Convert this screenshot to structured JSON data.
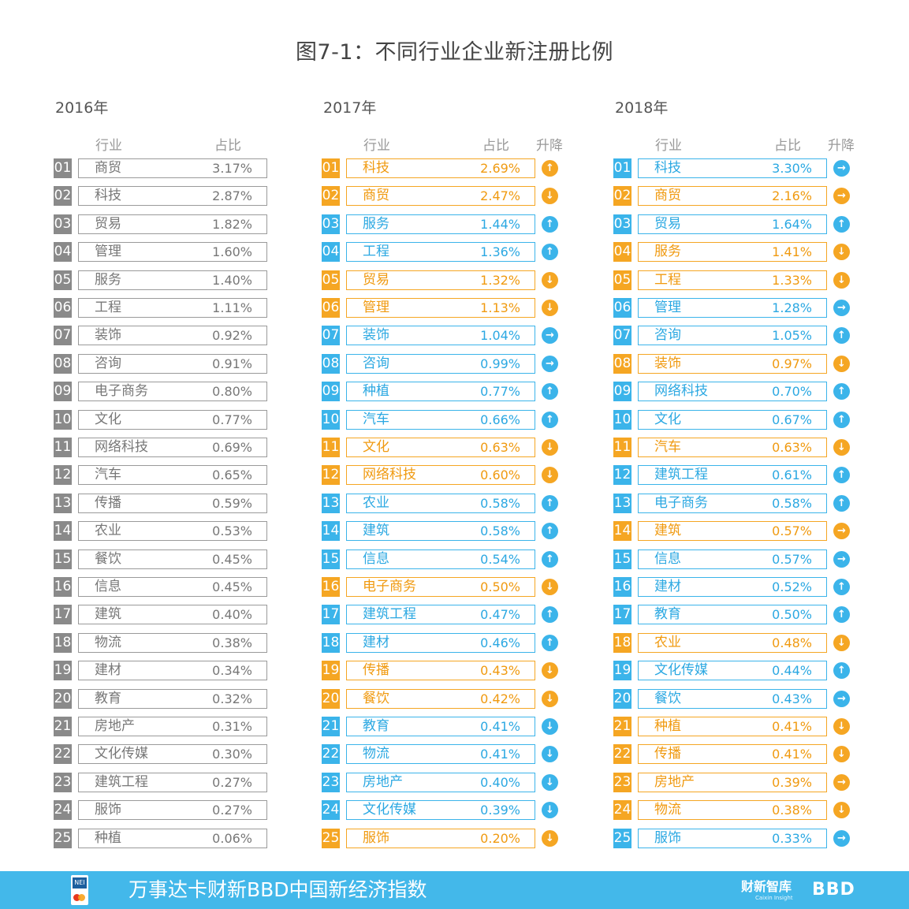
{
  "chart_data": {
    "type": "table",
    "title": "图7-1：不同行业企业新注册比例",
    "headers": {
      "industry": "行业",
      "share": "占比",
      "change": "升降"
    },
    "years": [
      {
        "year": "2016年",
        "rows": [
          {
            "rank": "01",
            "industry": "商贸",
            "share": "3.17%"
          },
          {
            "rank": "02",
            "industry": "科技",
            "share": "2.87%"
          },
          {
            "rank": "03",
            "industry": "贸易",
            "share": "1.82%"
          },
          {
            "rank": "04",
            "industry": "管理",
            "share": "1.60%"
          },
          {
            "rank": "05",
            "industry": "服务",
            "share": "1.40%"
          },
          {
            "rank": "06",
            "industry": "工程",
            "share": "1.11%"
          },
          {
            "rank": "07",
            "industry": "装饰",
            "share": "0.92%"
          },
          {
            "rank": "08",
            "industry": "咨询",
            "share": "0.91%"
          },
          {
            "rank": "09",
            "industry": "电子商务",
            "share": "0.80%"
          },
          {
            "rank": "10",
            "industry": "文化",
            "share": "0.77%"
          },
          {
            "rank": "11",
            "industry": "网络科技",
            "share": "0.69%"
          },
          {
            "rank": "12",
            "industry": "汽车",
            "share": "0.65%"
          },
          {
            "rank": "13",
            "industry": "传播",
            "share": "0.59%"
          },
          {
            "rank": "14",
            "industry": "农业",
            "share": "0.53%"
          },
          {
            "rank": "15",
            "industry": "餐饮",
            "share": "0.45%"
          },
          {
            "rank": "16",
            "industry": "信息",
            "share": "0.45%"
          },
          {
            "rank": "17",
            "industry": "建筑",
            "share": "0.40%"
          },
          {
            "rank": "18",
            "industry": "物流",
            "share": "0.38%"
          },
          {
            "rank": "19",
            "industry": "建材",
            "share": "0.34%"
          },
          {
            "rank": "20",
            "industry": "教育",
            "share": "0.32%"
          },
          {
            "rank": "21",
            "industry": "房地产",
            "share": "0.31%"
          },
          {
            "rank": "22",
            "industry": "文化传媒",
            "share": "0.30%"
          },
          {
            "rank": "23",
            "industry": "建筑工程",
            "share": "0.27%"
          },
          {
            "rank": "24",
            "industry": "服饰",
            "share": "0.27%"
          },
          {
            "rank": "25",
            "industry": "种植",
            "share": "0.06%"
          }
        ]
      },
      {
        "year": "2017年",
        "rows": [
          {
            "rank": "01",
            "industry": "科技",
            "share": "2.69%",
            "color": "orange",
            "trend": "up"
          },
          {
            "rank": "02",
            "industry": "商贸",
            "share": "2.47%",
            "color": "orange",
            "trend": "down"
          },
          {
            "rank": "03",
            "industry": "服务",
            "share": "1.44%",
            "color": "blue",
            "trend": "up"
          },
          {
            "rank": "04",
            "industry": "工程",
            "share": "1.36%",
            "color": "blue",
            "trend": "up"
          },
          {
            "rank": "05",
            "industry": "贸易",
            "share": "1.32%",
            "color": "orange",
            "trend": "down"
          },
          {
            "rank": "06",
            "industry": "管理",
            "share": "1.13%",
            "color": "orange",
            "trend": "down"
          },
          {
            "rank": "07",
            "industry": "装饰",
            "share": "1.04%",
            "color": "blue",
            "trend": "same"
          },
          {
            "rank": "08",
            "industry": "咨询",
            "share": "0.99%",
            "color": "blue",
            "trend": "same"
          },
          {
            "rank": "09",
            "industry": "种植",
            "share": "0.77%",
            "color": "blue",
            "trend": "up"
          },
          {
            "rank": "10",
            "industry": "汽车",
            "share": "0.66%",
            "color": "blue",
            "trend": "up"
          },
          {
            "rank": "11",
            "industry": "文化",
            "share": "0.63%",
            "color": "orange",
            "trend": "down"
          },
          {
            "rank": "12",
            "industry": "网络科技",
            "share": "0.60%",
            "color": "orange",
            "trend": "down"
          },
          {
            "rank": "13",
            "industry": "农业",
            "share": "0.58%",
            "color": "blue",
            "trend": "up"
          },
          {
            "rank": "14",
            "industry": "建筑",
            "share": "0.58%",
            "color": "blue",
            "trend": "up"
          },
          {
            "rank": "15",
            "industry": "信息",
            "share": "0.54%",
            "color": "blue",
            "trend": "up"
          },
          {
            "rank": "16",
            "industry": "电子商务",
            "share": "0.50%",
            "color": "orange",
            "trend": "down"
          },
          {
            "rank": "17",
            "industry": "建筑工程",
            "share": "0.47%",
            "color": "blue",
            "trend": "up"
          },
          {
            "rank": "18",
            "industry": "建材",
            "share": "0.46%",
            "color": "blue",
            "trend": "up"
          },
          {
            "rank": "19",
            "industry": "传播",
            "share": "0.43%",
            "color": "orange",
            "trend": "down"
          },
          {
            "rank": "20",
            "industry": "餐饮",
            "share": "0.42%",
            "color": "orange",
            "trend": "down"
          },
          {
            "rank": "21",
            "industry": "教育",
            "share": "0.41%",
            "color": "blue",
            "trend": "down"
          },
          {
            "rank": "22",
            "industry": "物流",
            "share": "0.41%",
            "color": "blue",
            "trend": "down"
          },
          {
            "rank": "23",
            "industry": "房地产",
            "share": "0.40%",
            "color": "blue",
            "trend": "down"
          },
          {
            "rank": "24",
            "industry": "文化传媒",
            "share": "0.39%",
            "color": "blue",
            "trend": "down"
          },
          {
            "rank": "25",
            "industry": "服饰",
            "share": "0.20%",
            "color": "orange",
            "trend": "down"
          }
        ]
      },
      {
        "year": "2018年",
        "rows": [
          {
            "rank": "01",
            "industry": "科技",
            "share": "3.30%",
            "color": "blue",
            "trend": "same"
          },
          {
            "rank": "02",
            "industry": "商贸",
            "share": "2.16%",
            "color": "orange",
            "trend": "same"
          },
          {
            "rank": "03",
            "industry": "贸易",
            "share": "1.64%",
            "color": "blue",
            "trend": "up"
          },
          {
            "rank": "04",
            "industry": "服务",
            "share": "1.41%",
            "color": "orange",
            "trend": "down"
          },
          {
            "rank": "05",
            "industry": "工程",
            "share": "1.33%",
            "color": "orange",
            "trend": "down"
          },
          {
            "rank": "06",
            "industry": "管理",
            "share": "1.28%",
            "color": "blue",
            "trend": "same"
          },
          {
            "rank": "07",
            "industry": "咨询",
            "share": "1.05%",
            "color": "blue",
            "trend": "up"
          },
          {
            "rank": "08",
            "industry": "装饰",
            "share": "0.97%",
            "color": "orange",
            "trend": "down"
          },
          {
            "rank": "09",
            "industry": "网络科技",
            "share": "0.70%",
            "color": "blue",
            "trend": "up"
          },
          {
            "rank": "10",
            "industry": "文化",
            "share": "0.67%",
            "color": "blue",
            "trend": "up"
          },
          {
            "rank": "11",
            "industry": "汽车",
            "share": "0.63%",
            "color": "orange",
            "trend": "down"
          },
          {
            "rank": "12",
            "industry": "建筑工程",
            "share": "0.61%",
            "color": "blue",
            "trend": "up"
          },
          {
            "rank": "13",
            "industry": "电子商务",
            "share": "0.58%",
            "color": "blue",
            "trend": "up"
          },
          {
            "rank": "14",
            "industry": "建筑",
            "share": "0.57%",
            "color": "orange",
            "trend": "same"
          },
          {
            "rank": "15",
            "industry": "信息",
            "share": "0.57%",
            "color": "blue",
            "trend": "same"
          },
          {
            "rank": "16",
            "industry": "建材",
            "share": "0.52%",
            "color": "blue",
            "trend": "up"
          },
          {
            "rank": "17",
            "industry": "教育",
            "share": "0.50%",
            "color": "blue",
            "trend": "up"
          },
          {
            "rank": "18",
            "industry": "农业",
            "share": "0.48%",
            "color": "orange",
            "trend": "down"
          },
          {
            "rank": "19",
            "industry": "文化传媒",
            "share": "0.44%",
            "color": "blue",
            "trend": "up"
          },
          {
            "rank": "20",
            "industry": "餐饮",
            "share": "0.43%",
            "color": "blue",
            "trend": "same"
          },
          {
            "rank": "21",
            "industry": "种植",
            "share": "0.41%",
            "color": "orange",
            "trend": "down"
          },
          {
            "rank": "22",
            "industry": "传播",
            "share": "0.41%",
            "color": "orange",
            "trend": "down"
          },
          {
            "rank": "23",
            "industry": "房地产",
            "share": "0.39%",
            "color": "orange",
            "trend": "same"
          },
          {
            "rank": "24",
            "industry": "物流",
            "share": "0.38%",
            "color": "orange",
            "trend": "down"
          },
          {
            "rank": "25",
            "industry": "服饰",
            "share": "0.33%",
            "color": "blue",
            "trend": "same"
          }
        ]
      }
    ]
  },
  "colors": {
    "orange": "#f5a623",
    "blue": "#3bb4ea",
    "gray": "#8a8a8a",
    "footer": "#43b8ea"
  },
  "trend_icons": {
    "up": "arrow-up-circle-icon",
    "down": "arrow-down-circle-icon",
    "same": "arrow-right-circle-icon"
  },
  "footer": {
    "logo_badge": "NEI",
    "text": "万事达卡财新BBD中国新经济指数",
    "brand1": "财新智库",
    "brand1_sub": "Caixin Insight",
    "brand2": "BBD"
  }
}
